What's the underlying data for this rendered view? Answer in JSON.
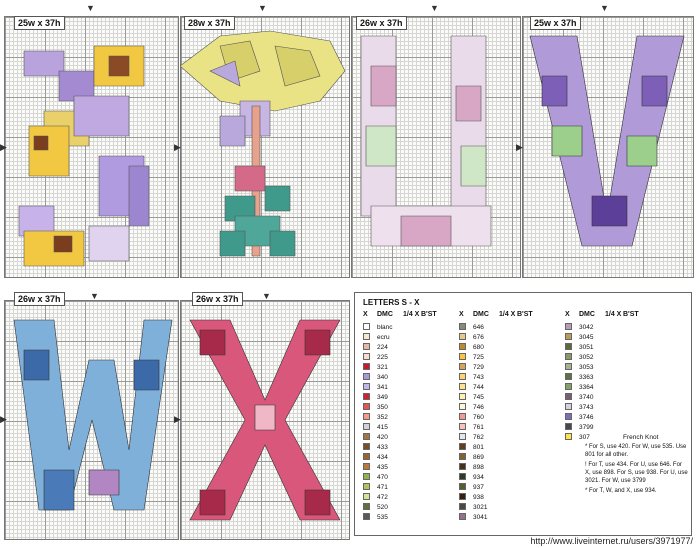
{
  "charts": [
    {
      "label": "25w x 37h",
      "letter": "S"
    },
    {
      "label": "28w x 37h",
      "letter": "T"
    },
    {
      "label": "26w x 37h",
      "letter": "U"
    },
    {
      "label": "25w x 37h",
      "letter": "V"
    },
    {
      "label": "26w x 37h",
      "letter": "W"
    },
    {
      "label": "26w x 37h",
      "letter": "X"
    }
  ],
  "legend": {
    "title": "LETTERS S - X",
    "headers": {
      "x": "X",
      "dmc": "DMC",
      "quarter": "1/4 X",
      "bst": "B'ST"
    },
    "col1": [
      {
        "dmc": "blanc",
        "color": "#ffffff"
      },
      {
        "dmc": "ecru",
        "color": "#f3ead2"
      },
      {
        "dmc": "224",
        "color": "#e7b7ab"
      },
      {
        "dmc": "225",
        "color": "#f7dcd5"
      },
      {
        "dmc": "321",
        "color": "#c51b2d"
      },
      {
        "dmc": "340",
        "color": "#a99ad6"
      },
      {
        "dmc": "341",
        "color": "#c2b8e6"
      },
      {
        "dmc": "349",
        "color": "#d1212e"
      },
      {
        "dmc": "350",
        "color": "#e0584e"
      },
      {
        "dmc": "352",
        "color": "#f59c87"
      },
      {
        "dmc": "415",
        "color": "#d3d3d6"
      },
      {
        "dmc": "420",
        "color": "#a07642"
      },
      {
        "dmc": "433",
        "color": "#7a4e28"
      },
      {
        "dmc": "434",
        "color": "#9a6433"
      },
      {
        "dmc": "435",
        "color": "#b7793f"
      },
      {
        "dmc": "470",
        "color": "#93b24b"
      },
      {
        "dmc": "471",
        "color": "#aec463"
      },
      {
        "dmc": "472",
        "color": "#d7e394"
      },
      {
        "dmc": "520",
        "color": "#61703f"
      },
      {
        "dmc": "535",
        "color": "#595a58"
      }
    ],
    "col2": [
      {
        "dmc": "646",
        "color": "#888a80"
      },
      {
        "dmc": "676",
        "color": "#e5ca8c"
      },
      {
        "dmc": "680",
        "color": "#bc8b2c"
      },
      {
        "dmc": "725",
        "color": "#ffc33b"
      },
      {
        "dmc": "729",
        "color": "#d3a45a"
      },
      {
        "dmc": "743",
        "color": "#fed273"
      },
      {
        "dmc": "744",
        "color": "#ffe18e"
      },
      {
        "dmc": "745",
        "color": "#fff0b3"
      },
      {
        "dmc": "746",
        "color": "#fcf7dc"
      },
      {
        "dmc": "760",
        "color": "#f39a98"
      },
      {
        "dmc": "761",
        "color": "#f9c1bd"
      },
      {
        "dmc": "762",
        "color": "#e6e6e6"
      },
      {
        "dmc": "801",
        "color": "#653e1f"
      },
      {
        "dmc": "869",
        "color": "#83622d"
      },
      {
        "dmc": "898",
        "color": "#49301b"
      },
      {
        "dmc": "934",
        "color": "#313a26"
      },
      {
        "dmc": "937",
        "color": "#545f2b"
      },
      {
        "dmc": "938",
        "color": "#371f0e"
      },
      {
        "dmc": "3021",
        "color": "#4f4840"
      },
      {
        "dmc": "3041",
        "color": "#95708a"
      }
    ],
    "col3": [
      {
        "dmc": "3042",
        "color": "#b99cb1"
      },
      {
        "dmc": "3045",
        "color": "#bb9a5a"
      },
      {
        "dmc": "3051",
        "color": "#5e6a3e"
      },
      {
        "dmc": "3052",
        "color": "#88996a"
      },
      {
        "dmc": "3053",
        "color": "#a8b38c"
      },
      {
        "dmc": "3363",
        "color": "#5e7247"
      },
      {
        "dmc": "3364",
        "color": "#84a169"
      },
      {
        "dmc": "3740",
        "color": "#795e74"
      },
      {
        "dmc": "3743",
        "color": "#d9cfd8"
      },
      {
        "dmc": "3746",
        "color": "#7b6fb5"
      },
      {
        "dmc": "3799",
        "color": "#454a4e"
      },
      {
        "dmc": "307",
        "color": "#fde44c",
        "extra": "French Knot"
      }
    ],
    "notes": [
      "* For S, use 420. For W, use 535. Use 801 for all other.",
      "! For T, use 434. For U, use 646. For X, use 898. For S, use 938. For U, use 3021. For W, use 3799",
      "* For T, W, and X, use 934."
    ]
  },
  "watermark": "http://www.liveinternet.ru/users/3971977/"
}
